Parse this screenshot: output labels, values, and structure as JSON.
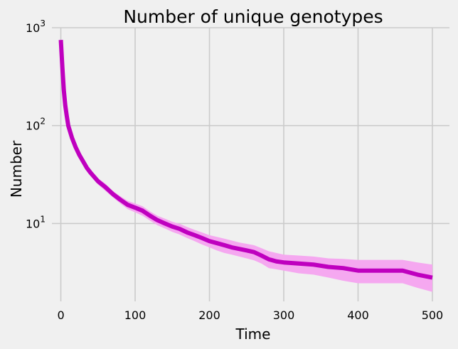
{
  "chart_data": {
    "type": "line",
    "title": "Number of unique genotypes",
    "xlabel": "Time",
    "ylabel": "Number",
    "xlim": [
      -12,
      523
    ],
    "ylim": [
      1.6,
      1000
    ],
    "yscale": "log",
    "grid": true,
    "x_ticks": [
      0,
      100,
      200,
      300,
      400,
      500
    ],
    "x_tick_labels": [
      "0",
      "100",
      "200",
      "300",
      "400",
      "500"
    ],
    "y_ticks": [
      10,
      100,
      1000
    ],
    "y_tick_labels": [
      {
        "base": "10",
        "exp": "1"
      },
      {
        "base": "10",
        "exp": "2"
      },
      {
        "base": "10",
        "exp": "3"
      }
    ],
    "colors": {
      "line": "#bf00bf",
      "band": "#f5a8f0",
      "grid": "#cbcbcb",
      "background": "#f0f0f0"
    },
    "series": [
      {
        "x": [
          0,
          2,
          4,
          6,
          8,
          10,
          15,
          20,
          25,
          30,
          35,
          40,
          50,
          60,
          70,
          80,
          90,
          100,
          110,
          120,
          130,
          140,
          150,
          160,
          170,
          180,
          190,
          200,
          210,
          220,
          230,
          240,
          250,
          260,
          270,
          280,
          290,
          300,
          320,
          340,
          360,
          380,
          400,
          420,
          440,
          460,
          480,
          500
        ],
        "y": [
          750,
          400,
          230,
          160,
          125,
          100,
          75,
          60,
          50,
          43,
          37,
          33,
          27,
          23.5,
          20,
          17.5,
          15.5,
          14.5,
          13.5,
          12,
          10.8,
          10,
          9.3,
          8.8,
          8.1,
          7.6,
          7.1,
          6.6,
          6.3,
          6,
          5.7,
          5.5,
          5.3,
          5.1,
          4.7,
          4.3,
          4.1,
          4,
          3.9,
          3.8,
          3.6,
          3.5,
          3.3,
          3.3,
          3.3,
          3.3,
          3.0,
          2.8
        ],
        "lower": [
          750,
          390,
          220,
          150,
          118,
          95,
          71,
          56,
          47,
          40,
          34.5,
          31,
          25,
          21.5,
          18.5,
          16,
          14,
          13,
          12,
          10.7,
          9.6,
          8.9,
          8.2,
          7.7,
          7.1,
          6.6,
          6.1,
          5.7,
          5.3,
          5,
          4.8,
          4.6,
          4.4,
          4.2,
          3.9,
          3.5,
          3.4,
          3.3,
          3.1,
          3.0,
          2.8,
          2.6,
          2.45,
          2.45,
          2.45,
          2.45,
          2.2,
          2.0
        ],
        "upper": [
          750,
          410,
          240,
          170,
          132,
          106,
          80,
          64,
          53,
          46,
          40,
          35,
          29,
          25.5,
          21.5,
          19,
          17,
          16,
          15,
          13.3,
          12,
          11.2,
          10.4,
          9.9,
          9.2,
          8.6,
          8.1,
          7.6,
          7.3,
          7,
          6.7,
          6.4,
          6.2,
          6.0,
          5.6,
          5.2,
          5.0,
          4.8,
          4.7,
          4.6,
          4.4,
          4.35,
          4.25,
          4.25,
          4.25,
          4.25,
          4.0,
          3.8
        ]
      }
    ]
  }
}
